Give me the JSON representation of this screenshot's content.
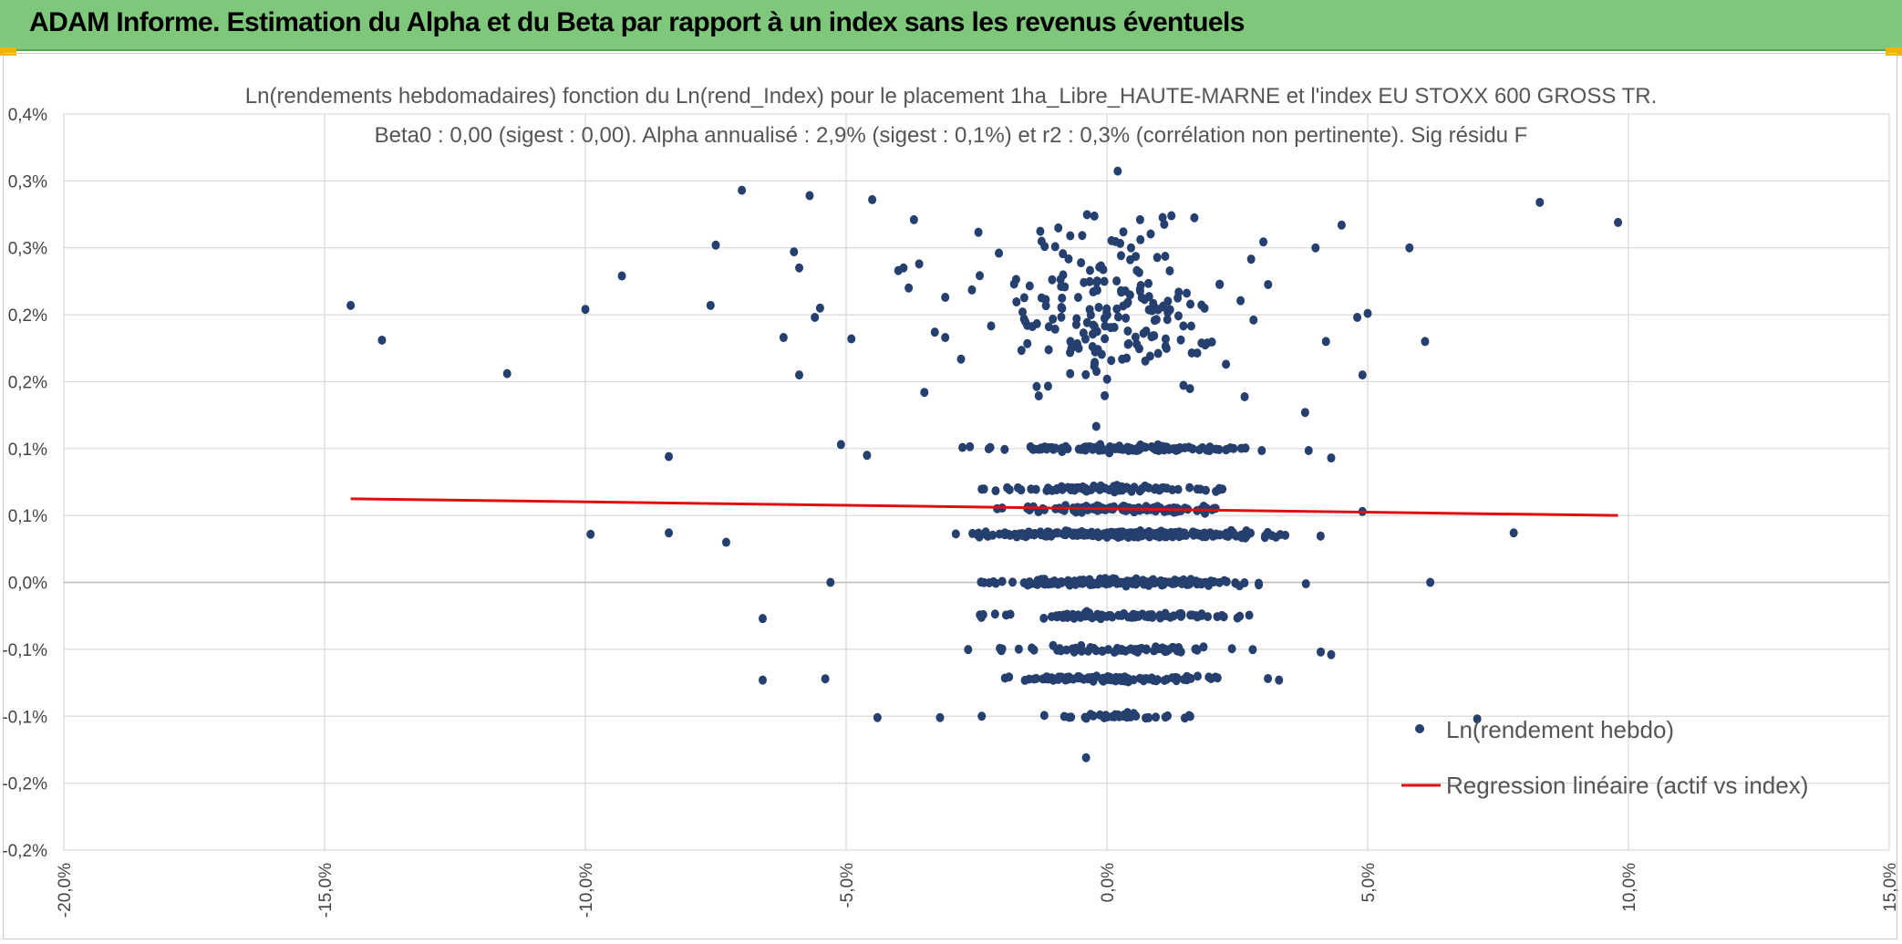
{
  "header": {
    "title": "ADAM Informe. Estimation du Alpha et du Beta par rapport à un index sans les revenus éventuels"
  },
  "colors": {
    "header_bg": "#7ec77b",
    "points": "#253f6e",
    "regression": "#e01010",
    "grid": "#d9d9d9"
  },
  "chart_data": {
    "type": "scatter",
    "title_line1": "Ln(rendements hebdomadaires) fonction du Ln(rend_Index) pour le placement 1ha_Libre_HAUTE-MARNE et l'index EU STOXX 600 GROSS TR.",
    "title_line2": "Beta0 : 0,00 (sigest : 0,00). Alpha annualisé : 2,9% (sigest : 0,1%) et r2 : 0,3% (corrélation non pertinente). Sig résidu F",
    "xlim": [
      -20,
      15
    ],
    "ylim": [
      -0.2,
      0.35
    ],
    "x_ticks": [
      {
        "v": -20,
        "label": "-20,0%"
      },
      {
        "v": -15,
        "label": "-15,0%"
      },
      {
        "v": -10,
        "label": "-10,0%"
      },
      {
        "v": -5,
        "label": "-5,0%"
      },
      {
        "v": 0,
        "label": "0,0%"
      },
      {
        "v": 5,
        "label": "5,0%"
      },
      {
        "v": 10,
        "label": "10,0%"
      },
      {
        "v": 15,
        "label": "15,0%"
      }
    ],
    "y_ticks": [
      {
        "v": 0.35,
        "label": "0,4%"
      },
      {
        "v": 0.3,
        "label": "0,3%"
      },
      {
        "v": 0.25,
        "label": "0,3%"
      },
      {
        "v": 0.2,
        "label": "0,2%"
      },
      {
        "v": 0.15,
        "label": "0,2%"
      },
      {
        "v": 0.1,
        "label": "0,1%"
      },
      {
        "v": 0.05,
        "label": "0,1%"
      },
      {
        "v": 0.0,
        "label": "0,0%"
      },
      {
        "v": -0.05,
        "label": "-0,1%"
      },
      {
        "v": -0.1,
        "label": "-0,1%"
      },
      {
        "v": -0.15,
        "label": "-0,2%"
      },
      {
        "v": -0.2,
        "label": "-0,2%"
      }
    ],
    "grid": true,
    "legend_position": "bottom-right",
    "series": [
      {
        "name": "Ln(rendement hebdo)",
        "type": "scatter",
        "points": [
          [
            -14.5,
            0.207
          ],
          [
            -13.9,
            0.181
          ],
          [
            -11.5,
            0.156
          ],
          [
            -9.3,
            0.229
          ],
          [
            -10.0,
            0.204
          ],
          [
            -7.5,
            0.252
          ],
          [
            -7.6,
            0.207
          ],
          [
            -7.0,
            0.293
          ],
          [
            -5.7,
            0.289
          ],
          [
            -6.0,
            0.247
          ],
          [
            -5.9,
            0.235
          ],
          [
            -6.2,
            0.183
          ],
          [
            -5.5,
            0.205
          ],
          [
            -5.6,
            0.198
          ],
          [
            -5.9,
            0.155
          ],
          [
            -4.9,
            0.182
          ],
          [
            -4.5,
            0.286
          ],
          [
            -3.7,
            0.271
          ],
          [
            -3.9,
            0.235
          ],
          [
            -3.6,
            0.238
          ],
          [
            -4.0,
            0.233
          ],
          [
            -3.8,
            0.22
          ],
          [
            -3.3,
            0.187
          ],
          [
            -3.1,
            0.213
          ],
          [
            -3.1,
            0.183
          ],
          [
            -3.5,
            0.142
          ],
          [
            -8.4,
            0.094
          ],
          [
            -5.1,
            0.103
          ],
          [
            -4.6,
            0.095
          ],
          [
            -9.9,
            0.036
          ],
          [
            -8.4,
            0.037
          ],
          [
            -7.3,
            0.03
          ],
          [
            -5.3,
            0.0
          ],
          [
            -6.6,
            -0.027
          ],
          [
            -6.6,
            -0.073
          ],
          [
            -5.4,
            -0.072
          ],
          [
            -4.4,
            -0.101
          ],
          [
            -3.2,
            -0.101
          ],
          [
            -2.4,
            -0.1
          ],
          [
            8.3,
            0.284
          ],
          [
            9.8,
            0.269
          ],
          [
            5.8,
            0.25
          ],
          [
            6.1,
            0.18
          ],
          [
            4.0,
            0.25
          ],
          [
            4.5,
            0.267
          ],
          [
            4.8,
            0.198
          ],
          [
            5.0,
            0.201
          ],
          [
            4.9,
            0.155
          ],
          [
            4.2,
            0.18
          ],
          [
            3.8,
            0.127
          ],
          [
            4.3,
            0.093
          ],
          [
            4.9,
            0.053
          ],
          [
            6.2,
            0.0
          ],
          [
            7.8,
            0.037
          ],
          [
            7.1,
            -0.102
          ],
          [
            3.3,
            -0.073
          ],
          [
            4.1,
            -0.052
          ],
          [
            4.3,
            -0.054
          ],
          [
            -0.4,
            -0.131
          ]
        ]
      },
      {
        "name": "Regression linéaire (actif vs index)",
        "type": "line",
        "x": [
          -14.5,
          9.8
        ],
        "y": [
          0.0625,
          0.05
        ]
      }
    ]
  }
}
